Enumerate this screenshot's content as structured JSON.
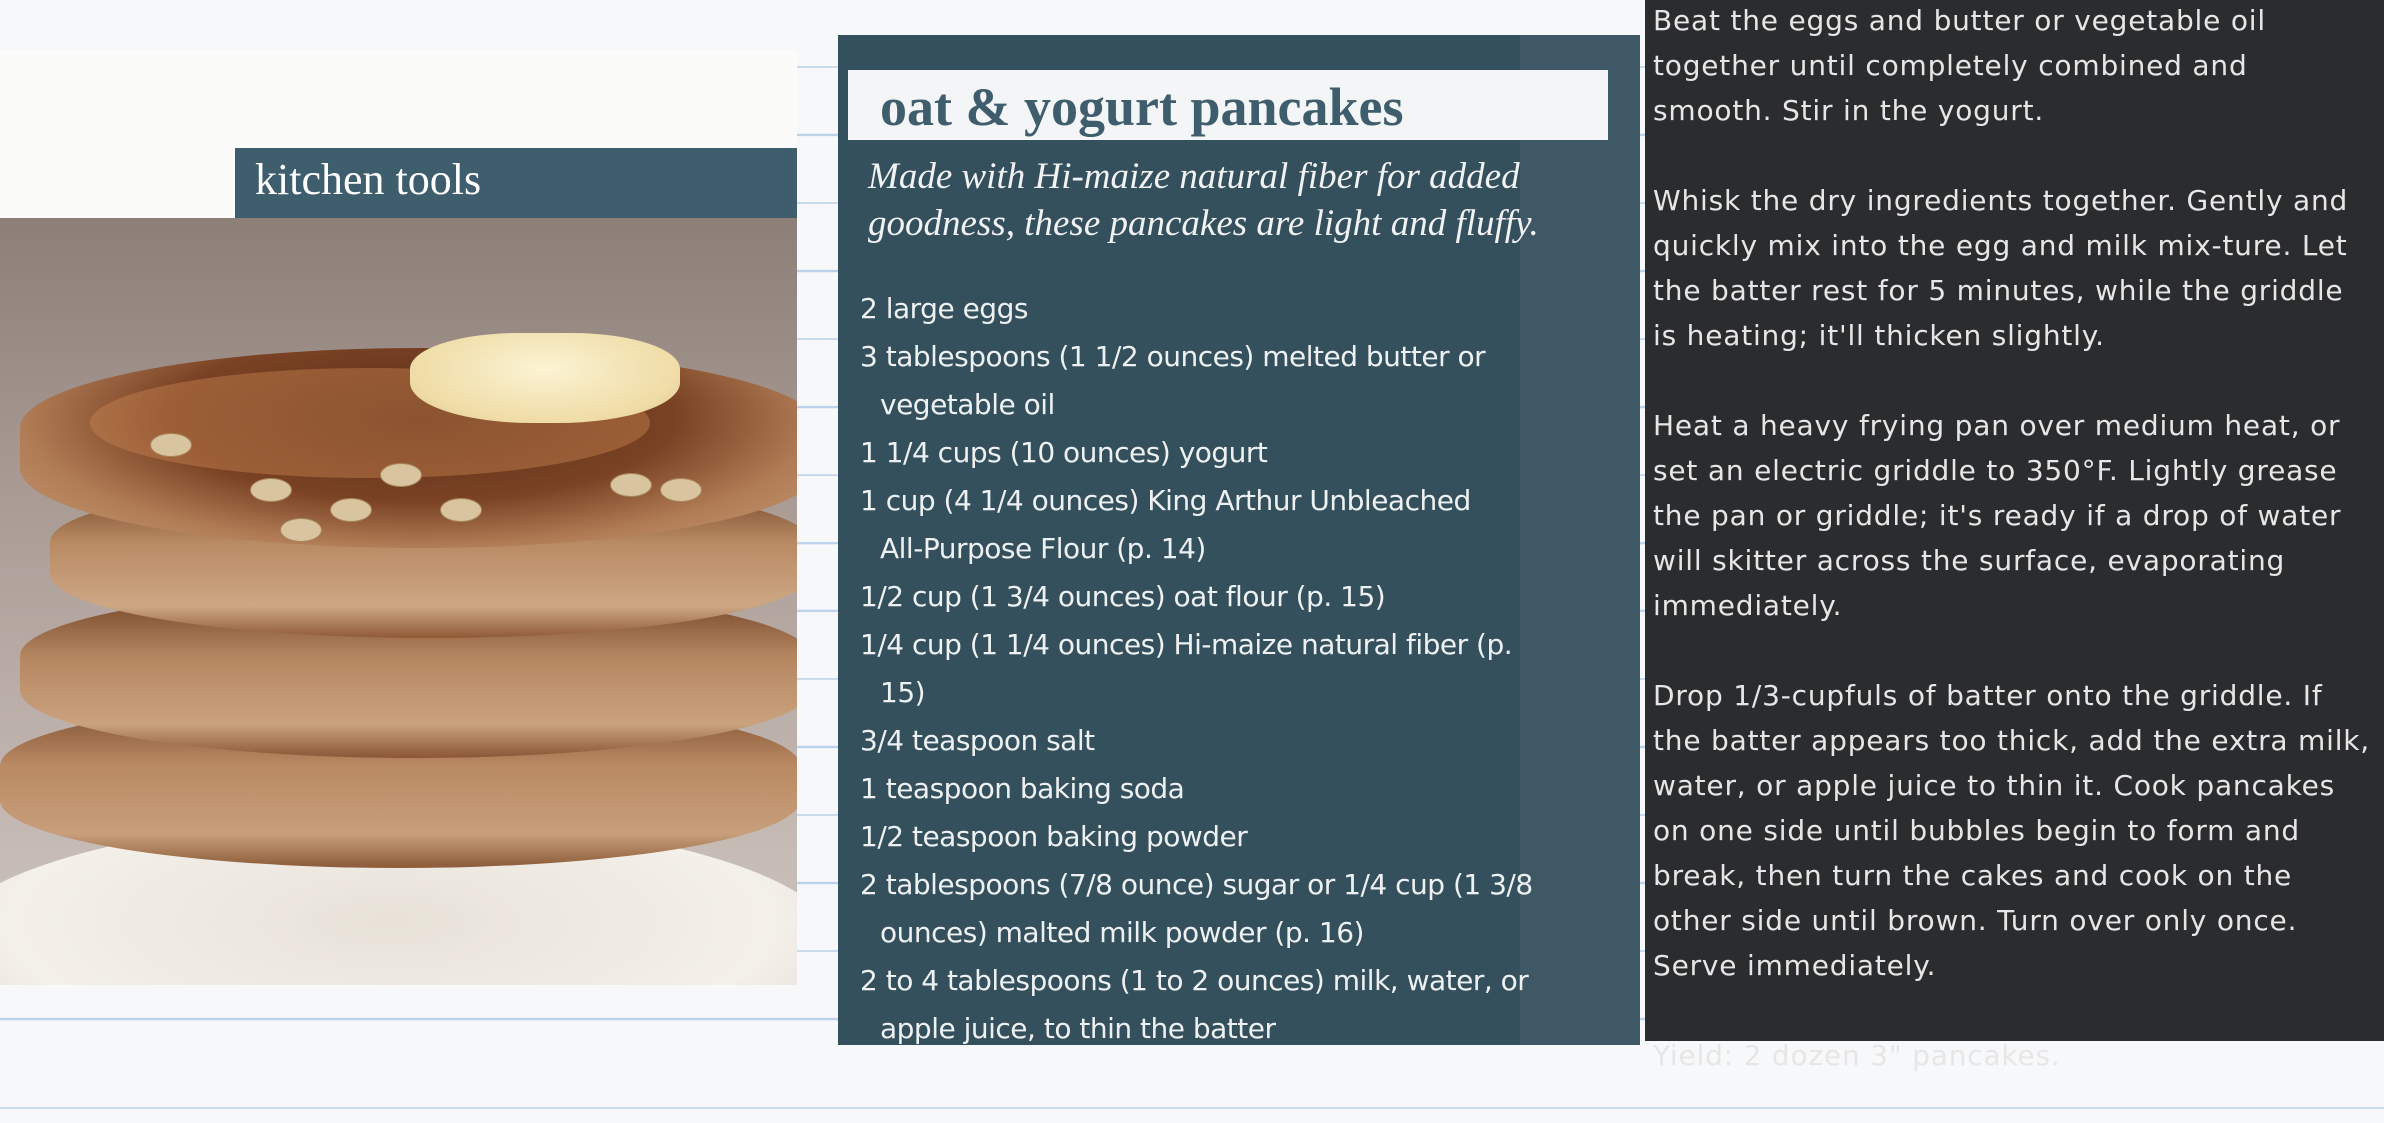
{
  "left_clipping": {
    "header": "kitchen tools",
    "photo": "pancake-stack-photo"
  },
  "recipe": {
    "title": "oat & yogurt pancakes",
    "subtitle": "Made with Hi-maize natural fiber for added goodness, these pancakes are light and fluffy.",
    "ingredients": [
      "2 large eggs",
      "3 tablespoons (1 1/2 ounces) melted butter or vegetable oil",
      "1 1/4 cups (10 ounces) yogurt",
      "1 cup (4 1/4 ounces) King Arthur Unbleached All-Purpose Flour (p. 14)",
      "1/2 cup (1 3/4 ounces) oat flour (p. 15)",
      "1/4 cup (1 1/4 ounces) Hi-maize natural fiber (p. 15)",
      "3/4 teaspoon salt",
      "1 teaspoon baking soda",
      "1/2 teaspoon baking powder",
      "2 tablespoons (7/8 ounce) sugar or 1/4 cup (1 3/8 ounces) malted milk powder (p. 16)",
      "2 to 4 tablespoons (1 to 2 ounces) milk, water, or apple juice, to thin the batter"
    ],
    "steps": [
      "Beat the eggs and butter or vegetable oil together until completely combined and smooth. Stir in the yogurt.",
      "Whisk the dry ingredients together. Gently and quickly mix into the egg and milk mix-ture. Let the batter rest for 5 minutes, while the griddle is heating; it'll thicken slightly.",
      "Heat a heavy frying pan over medium heat, or set an electric griddle to 350°F. Lightly grease the pan or griddle; it's ready if a drop of water will skitter across the surface, evaporating immediately.",
      "Drop 1/3-cupfuls of batter onto the griddle. If the batter appears too thick, add the extra milk, water, or apple juice to thin it. Cook pancakes on one side until bubbles begin to form and break, then turn the cakes and cook on the other side until brown. Turn over only once. Serve immediately."
    ],
    "yield": "Yield: 2 dozen 3\" pancakes."
  },
  "colors": {
    "header_band": "#3e5d6d",
    "ingredients_card": "#35505d",
    "steps_card": "#2b2c2e"
  }
}
